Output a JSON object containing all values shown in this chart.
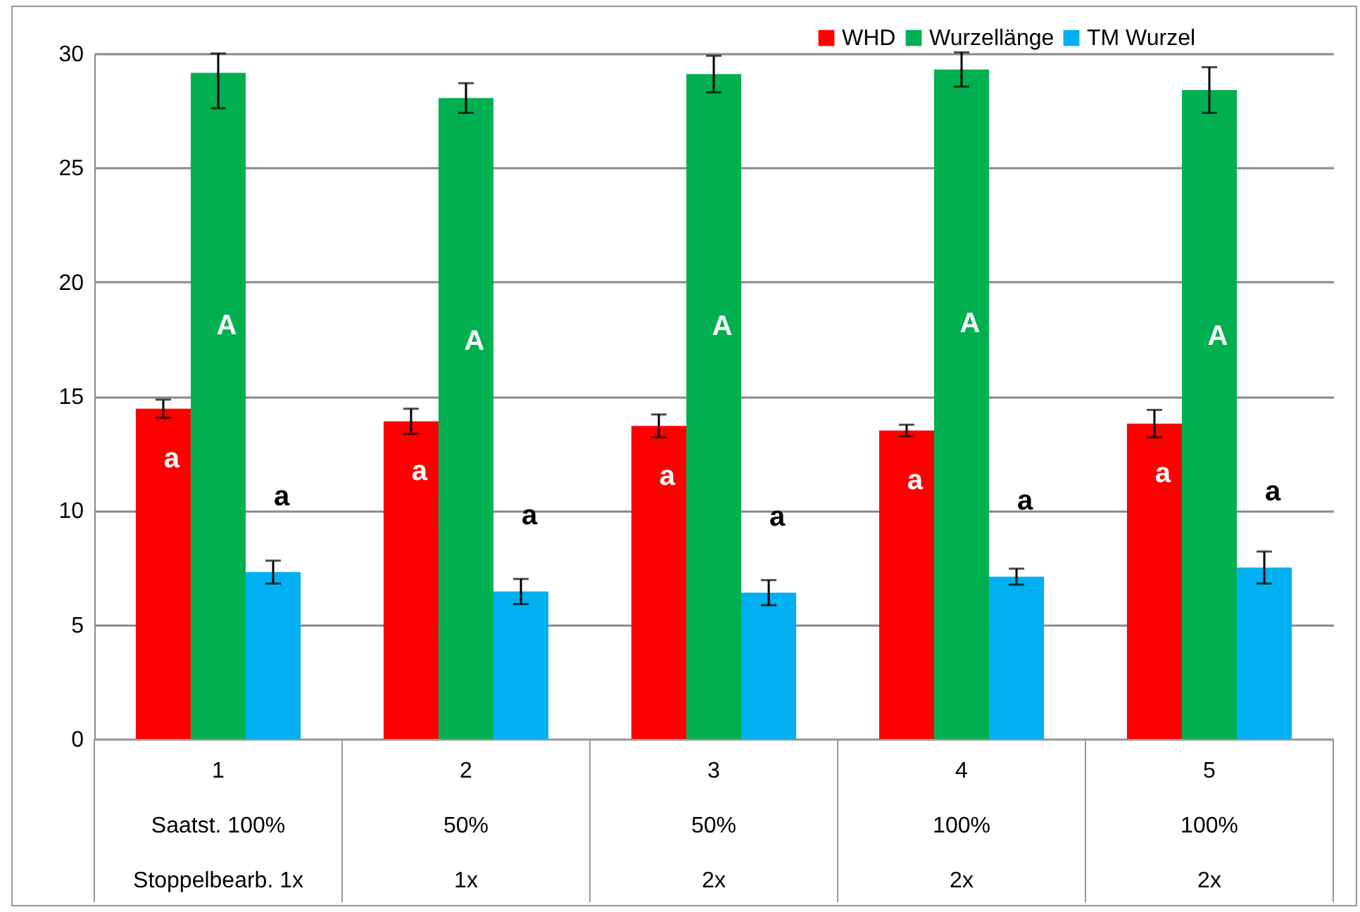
{
  "chart_data": {
    "type": "bar",
    "categories": [
      "1\nSaatst. 100%\nStoppelbearb. 1x",
      "2\n50%\n1x",
      "3\n50%\n2x",
      "4\n100%\n2x",
      "5\n100%\n2x"
    ],
    "series": [
      {
        "name": "WHD",
        "color": "#ff0000",
        "values": [
          14.45,
          13.9,
          13.7,
          13.5,
          13.8
        ],
        "errors": [
          0.4,
          0.55,
          0.5,
          0.25,
          0.6
        ]
      },
      {
        "name": "Wurzellänge",
        "color": "#00b050",
        "values": [
          29.15,
          28.05,
          29.1,
          29.3,
          28.4
        ],
        "errors": [
          [
            27.6,
            30
          ],
          0.65,
          0.8,
          0.75,
          1.0
        ]
      },
      {
        "name": "TM Wurzel",
        "color": "#00b0f0",
        "values": [
          7.3,
          6.45,
          6.4,
          7.1,
          7.5
        ],
        "errors": [
          0.5,
          0.55,
          0.55,
          0.35,
          0.7
        ]
      }
    ],
    "annotations": [
      "a",
      "A",
      "a",
      "a",
      "A",
      "a",
      "a",
      "A",
      "a",
      "a",
      "A",
      "a",
      "a",
      "A",
      "a"
    ],
    "ylim": [
      0,
      30
    ],
    "yticks": [
      0,
      5,
      10,
      15,
      20,
      25,
      30
    ],
    "grid": "y",
    "legend": "top right"
  }
}
